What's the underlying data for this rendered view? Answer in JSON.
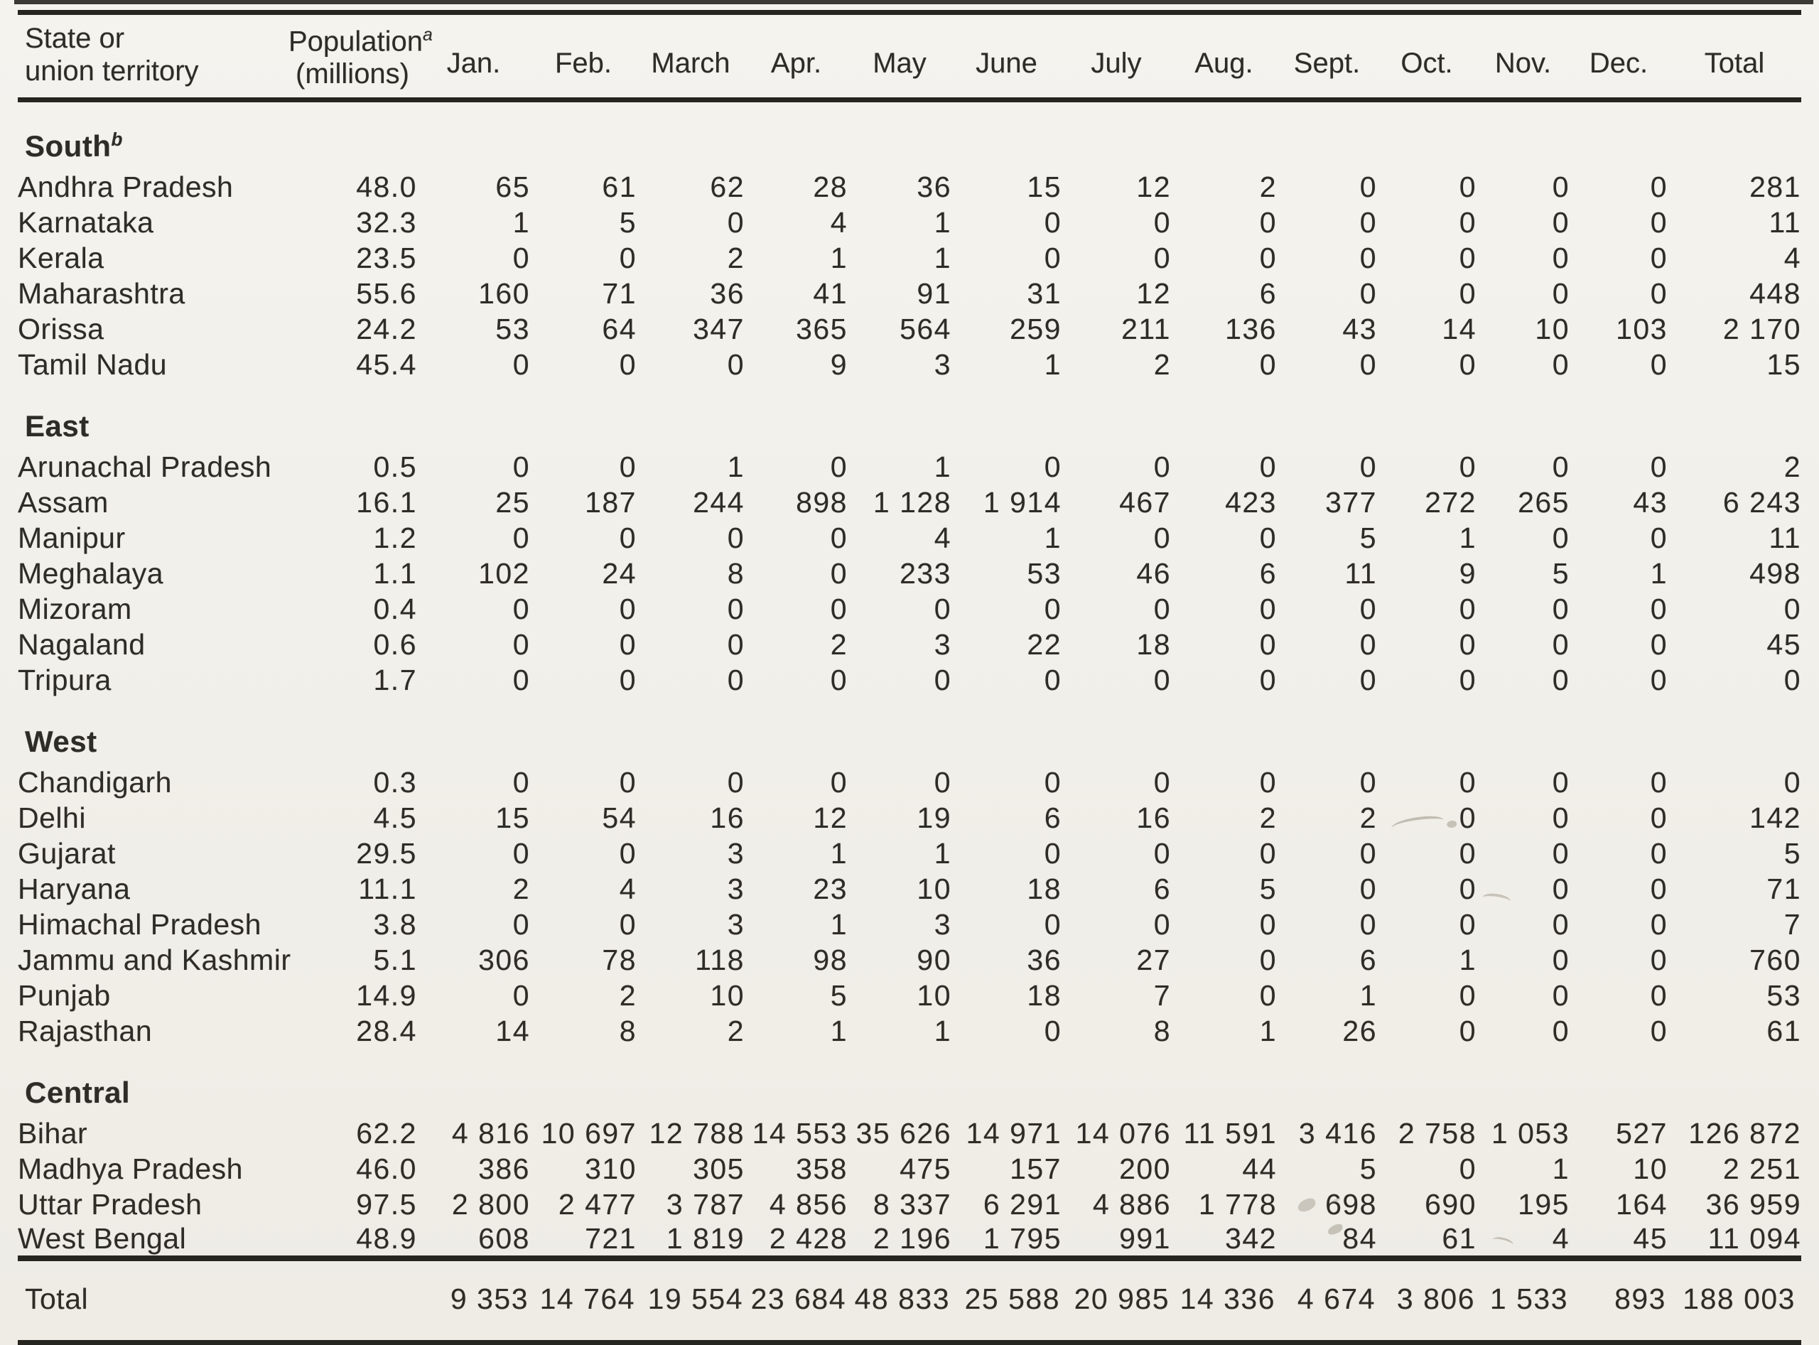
{
  "table": {
    "header": {
      "col1_line1": "State or",
      "col1_line2": "union territory",
      "pop_line1": "Population",
      "pop_sup": "a",
      "pop_line2": "(millions)",
      "months": [
        "Jan.",
        "Feb.",
        "March",
        "Apr.",
        "May",
        "June",
        "July",
        "Aug.",
        "Sept.",
        "Oct.",
        "Nov.",
        "Dec."
      ],
      "total_label": "Total"
    },
    "sections": [
      {
        "name": "South",
        "sup": "b",
        "rows": [
          {
            "state": "Andhra Pradesh",
            "population": "48.0",
            "values": [
              "65",
              "61",
              "62",
              "28",
              "36",
              "15",
              "12",
              "2",
              "0",
              "0",
              "0",
              "0"
            ],
            "total": "281"
          },
          {
            "state": "Karnataka",
            "population": "32.3",
            "values": [
              "1",
              "5",
              "0",
              "4",
              "1",
              "0",
              "0",
              "0",
              "0",
              "0",
              "0",
              "0"
            ],
            "total": "11"
          },
          {
            "state": "Kerala",
            "population": "23.5",
            "values": [
              "0",
              "0",
              "2",
              "1",
              "1",
              "0",
              "0",
              "0",
              "0",
              "0",
              "0",
              "0"
            ],
            "total": "4"
          },
          {
            "state": "Maharashtra",
            "population": "55.6",
            "values": [
              "160",
              "71",
              "36",
              "41",
              "91",
              "31",
              "12",
              "6",
              "0",
              "0",
              "0",
              "0"
            ],
            "total": "448"
          },
          {
            "state": "Orissa",
            "population": "24.2",
            "values": [
              "53",
              "64",
              "347",
              "365",
              "564",
              "259",
              "211",
              "136",
              "43",
              "14",
              "10",
              "103"
            ],
            "total": "2 170"
          },
          {
            "state": "Tamil Nadu",
            "population": "45.4",
            "values": [
              "0",
              "0",
              "0",
              "9",
              "3",
              "1",
              "2",
              "0",
              "0",
              "0",
              "0",
              "0"
            ],
            "total": "15"
          }
        ]
      },
      {
        "name": "East",
        "sup": "",
        "rows": [
          {
            "state": "Arunachal Pradesh",
            "population": "0.5",
            "values": [
              "0",
              "0",
              "1",
              "0",
              "1",
              "0",
              "0",
              "0",
              "0",
              "0",
              "0",
              "0"
            ],
            "total": "2"
          },
          {
            "state": "Assam",
            "population": "16.1",
            "values": [
              "25",
              "187",
              "244",
              "898",
              "1 128",
              "1 914",
              "467",
              "423",
              "377",
              "272",
              "265",
              "43"
            ],
            "total": "6 243"
          },
          {
            "state": "Manipur",
            "population": "1.2",
            "values": [
              "0",
              "0",
              "0",
              "0",
              "4",
              "1",
              "0",
              "0",
              "5",
              "1",
              "0",
              "0"
            ],
            "total": "11"
          },
          {
            "state": "Meghalaya",
            "population": "1.1",
            "values": [
              "102",
              "24",
              "8",
              "0",
              "233",
              "53",
              "46",
              "6",
              "11",
              "9",
              "5",
              "1"
            ],
            "total": "498"
          },
          {
            "state": "Mizoram",
            "population": "0.4",
            "values": [
              "0",
              "0",
              "0",
              "0",
              "0",
              "0",
              "0",
              "0",
              "0",
              "0",
              "0",
              "0"
            ],
            "total": "0"
          },
          {
            "state": "Nagaland",
            "population": "0.6",
            "values": [
              "0",
              "0",
              "0",
              "2",
              "3",
              "22",
              "18",
              "0",
              "0",
              "0",
              "0",
              "0"
            ],
            "total": "45"
          },
          {
            "state": "Tripura",
            "population": "1.7",
            "values": [
              "0",
              "0",
              "0",
              "0",
              "0",
              "0",
              "0",
              "0",
              "0",
              "0",
              "0",
              "0"
            ],
            "total": "0"
          }
        ]
      },
      {
        "name": "West",
        "sup": "",
        "rows": [
          {
            "state": "Chandigarh",
            "population": "0.3",
            "values": [
              "0",
              "0",
              "0",
              "0",
              "0",
              "0",
              "0",
              "0",
              "0",
              "0",
              "0",
              "0"
            ],
            "total": "0"
          },
          {
            "state": "Delhi",
            "population": "4.5",
            "values": [
              "15",
              "54",
              "16",
              "12",
              "19",
              "6",
              "16",
              "2",
              "2",
              "0",
              "0",
              "0"
            ],
            "total": "142"
          },
          {
            "state": "Gujarat",
            "population": "29.5",
            "values": [
              "0",
              "0",
              "3",
              "1",
              "1",
              "0",
              "0",
              "0",
              "0",
              "0",
              "0",
              "0"
            ],
            "total": "5"
          },
          {
            "state": "Haryana",
            "population": "11.1",
            "values": [
              "2",
              "4",
              "3",
              "23",
              "10",
              "18",
              "6",
              "5",
              "0",
              "0",
              "0",
              "0"
            ],
            "total": "71"
          },
          {
            "state": "Himachal Pradesh",
            "population": "3.8",
            "values": [
              "0",
              "0",
              "3",
              "1",
              "3",
              "0",
              "0",
              "0",
              "0",
              "0",
              "0",
              "0"
            ],
            "total": "7"
          },
          {
            "state": "Jammu and Kashmir",
            "population": "5.1",
            "values": [
              "306",
              "78",
              "118",
              "98",
              "90",
              "36",
              "27",
              "0",
              "6",
              "1",
              "0",
              "0"
            ],
            "total": "760"
          },
          {
            "state": "Punjab",
            "population": "14.9",
            "values": [
              "0",
              "2",
              "10",
              "5",
              "10",
              "18",
              "7",
              "0",
              "1",
              "0",
              "0",
              "0"
            ],
            "total": "53"
          },
          {
            "state": "Rajasthan",
            "population": "28.4",
            "values": [
              "14",
              "8",
              "2",
              "1",
              "1",
              "0",
              "8",
              "1",
              "26",
              "0",
              "0",
              "0"
            ],
            "total": "61"
          }
        ]
      },
      {
        "name": "Central",
        "sup": "",
        "rows": [
          {
            "state": "Bihar",
            "population": "62.2",
            "values": [
              "4 816",
              "10 697",
              "12 788",
              "14 553",
              "35 626",
              "14 971",
              "14 076",
              "11 591",
              "3 416",
              "2 758",
              "1 053",
              "527"
            ],
            "total": "126 872"
          },
          {
            "state": "Madhya Pradesh",
            "population": "46.0",
            "values": [
              "386",
              "310",
              "305",
              "358",
              "475",
              "157",
              "200",
              "44",
              "5",
              "0",
              "1",
              "10"
            ],
            "total": "2 251"
          },
          {
            "state": "Uttar Pradesh",
            "population": "97.5",
            "values": [
              "2 800",
              "2 477",
              "3 787",
              "4 856",
              "8 337",
              "6 291",
              "4 886",
              "1 778",
              "698",
              "690",
              "195",
              "164"
            ],
            "total": "36 959"
          },
          {
            "state": "West Bengal",
            "population": "48.9",
            "values": [
              "608",
              "721",
              "1 819",
              "2 428",
              "2 196",
              "1 795",
              "991",
              "342",
              "84",
              "61",
              "4",
              "45"
            ],
            "total": "11 094"
          }
        ]
      }
    ],
    "grand_total": {
      "label": "Total",
      "population": "",
      "values": [
        "9 353",
        "14 764",
        "19 554",
        "23 684",
        "48 833",
        "25 588",
        "20 985",
        "14 336",
        "4 674",
        "3 806",
        "1 533",
        "893"
      ],
      "total": "188 003"
    }
  }
}
